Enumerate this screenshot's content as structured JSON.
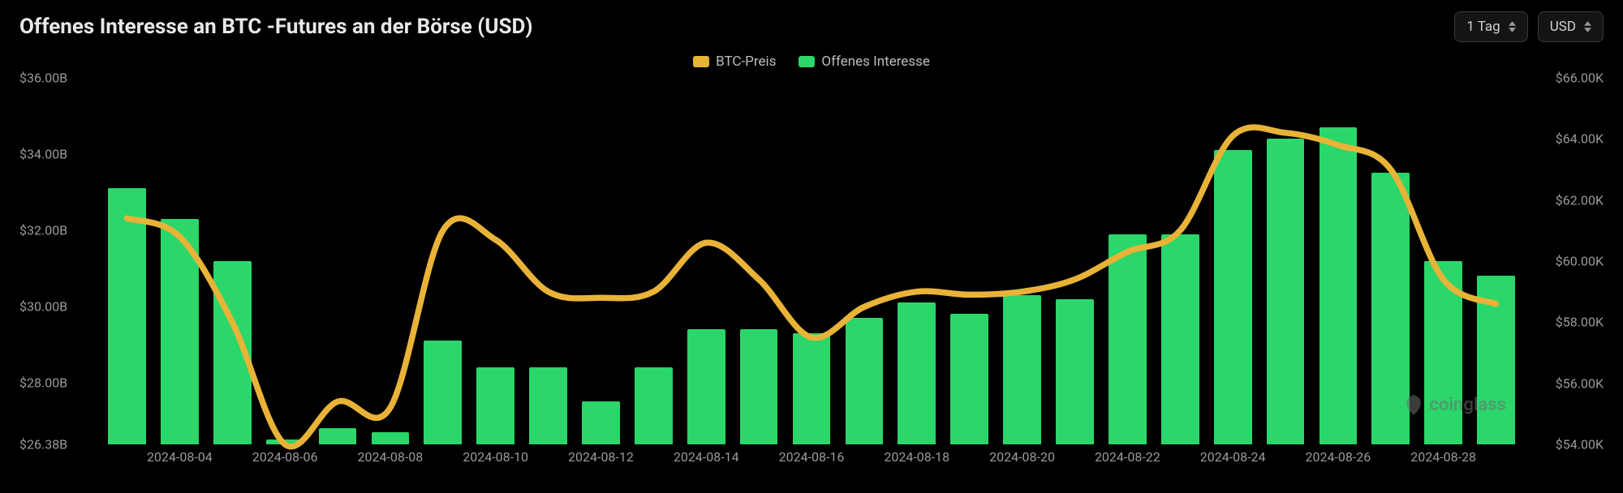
{
  "title": "Offenes Interesse an BTC -Futures an der Börse (USD)",
  "controls": {
    "timeframe": "1 Tag",
    "currency": "USD"
  },
  "legend": [
    {
      "label": "BTC-Preis",
      "color": "#e8b337"
    },
    {
      "label": "Offenes Interesse",
      "color": "#2bd66a"
    }
  ],
  "watermark": "coinglass",
  "chart": {
    "type": "bar+line",
    "background_color": "#000000",
    "bar_color": "#2bd66a",
    "line_color": "#e8b337",
    "line_width": 2.5,
    "bar_width_ratio": 0.72,
    "axis_label_color": "#9a9a9a",
    "axis_label_fontsize": 16,
    "left_axis": {
      "min": 26.38,
      "max": 36.0,
      "ticks": [
        {
          "v": 26.38,
          "label": "$26.38B"
        },
        {
          "v": 28.0,
          "label": "$28.00B"
        },
        {
          "v": 30.0,
          "label": "$30.00B"
        },
        {
          "v": 32.0,
          "label": "$32.00B"
        },
        {
          "v": 34.0,
          "label": "$34.00B"
        },
        {
          "v": 36.0,
          "label": "$36.00B"
        }
      ]
    },
    "right_axis": {
      "min": 54.0,
      "max": 66.0,
      "ticks": [
        {
          "v": 54.0,
          "label": "$54.00K"
        },
        {
          "v": 56.0,
          "label": "$56.00K"
        },
        {
          "v": 58.0,
          "label": "$58.00K"
        },
        {
          "v": 60.0,
          "label": "$60.00K"
        },
        {
          "v": 62.0,
          "label": "$62.00K"
        },
        {
          "v": 64.0,
          "label": "$64.00K"
        },
        {
          "v": 66.0,
          "label": "$66.00K"
        }
      ]
    },
    "categories": [
      "2024-08-03",
      "2024-08-04",
      "2024-08-05",
      "2024-08-06",
      "2024-08-07",
      "2024-08-08",
      "2024-08-09",
      "2024-08-10",
      "2024-08-11",
      "2024-08-12",
      "2024-08-13",
      "2024-08-14",
      "2024-08-15",
      "2024-08-16",
      "2024-08-17",
      "2024-08-18",
      "2024-08-19",
      "2024-08-20",
      "2024-08-21",
      "2024-08-22",
      "2024-08-23",
      "2024-08-24",
      "2024-08-25",
      "2024-08-26",
      "2024-08-27",
      "2024-08-28",
      "2024-08-29"
    ],
    "x_tick_labels": [
      "2024-08-04",
      "2024-08-06",
      "2024-08-08",
      "2024-08-10",
      "2024-08-12",
      "2024-08-14",
      "2024-08-16",
      "2024-08-18",
      "2024-08-20",
      "2024-08-22",
      "2024-08-24",
      "2024-08-26",
      "2024-08-28"
    ],
    "bars_open_interest_B": [
      33.1,
      32.3,
      31.2,
      26.5,
      26.8,
      26.7,
      29.1,
      28.4,
      28.4,
      27.5,
      28.4,
      29.4,
      29.4,
      29.3,
      29.7,
      30.1,
      29.8,
      30.3,
      30.2,
      31.9,
      31.9,
      34.1,
      34.4,
      34.7,
      33.5,
      31.2,
      30.8
    ],
    "line_btc_price_K": [
      61.4,
      60.8,
      58.0,
      54.0,
      55.4,
      55.2,
      61.0,
      60.7,
      59.0,
      58.8,
      59.0,
      60.6,
      59.4,
      57.5,
      58.5,
      59.0,
      58.9,
      59.0,
      59.4,
      60.3,
      61.0,
      64.1,
      64.2,
      63.8,
      63.0,
      59.4,
      58.6
    ]
  }
}
